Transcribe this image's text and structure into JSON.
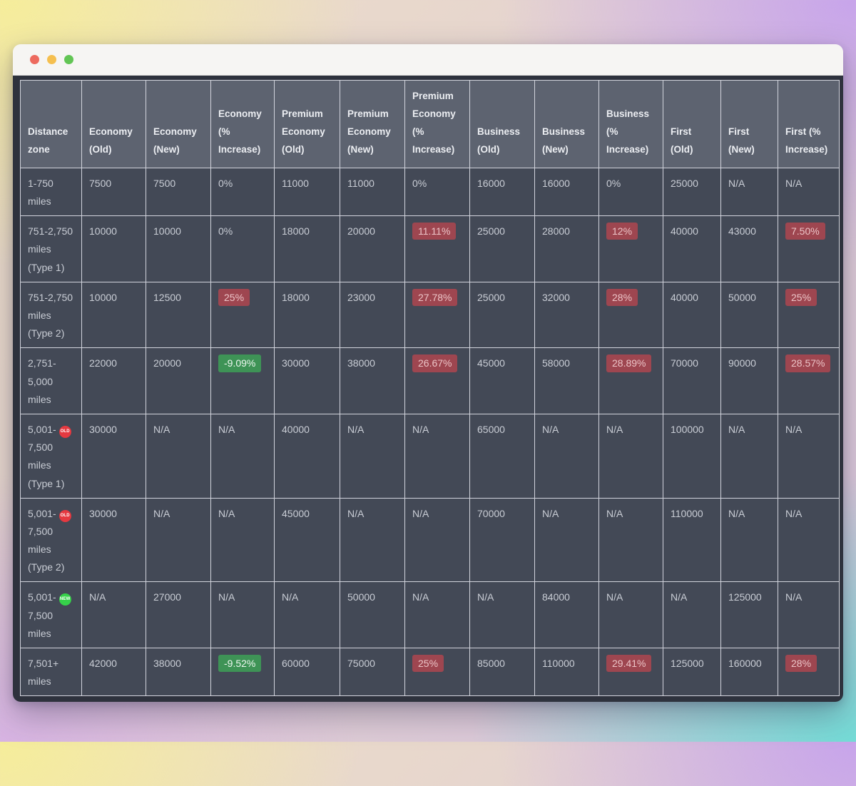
{
  "window": {
    "traffic_lights": [
      "#ed6a5e",
      "#f5bf4f",
      "#62c554"
    ]
  },
  "colors": {
    "red_highlight_bg": "#9e4650",
    "red_highlight_text": "#ecc4c7",
    "green_highlight_bg": "#3e9356",
    "green_highlight_text": "#edf7f0",
    "old_badge_bg": "#e53940",
    "new_badge_bg": "#36d14a"
  },
  "table": {
    "headers": [
      "Distance zone",
      "Economy (Old)",
      "Economy (New)",
      "Economy (% Increase)",
      "Premium Economy (Old)",
      "Premium Economy (New)",
      "Premium Economy (% Increase)",
      "Business (Old)",
      "Business (New)",
      "Business (% Increase)",
      "First (Old)",
      "First (New)",
      "First (% Increase)"
    ],
    "rows": [
      {
        "zone": "1-750 miles",
        "badge": null,
        "cells": [
          {
            "v": "7500"
          },
          {
            "v": "7500"
          },
          {
            "v": "0%"
          },
          {
            "v": "11000"
          },
          {
            "v": "11000"
          },
          {
            "v": "0%"
          },
          {
            "v": "16000"
          },
          {
            "v": "16000"
          },
          {
            "v": "0%"
          },
          {
            "v": "25000"
          },
          {
            "v": "N/A"
          },
          {
            "v": "N/A"
          }
        ]
      },
      {
        "zone": "751-2,750 miles (Type 1)",
        "badge": null,
        "cells": [
          {
            "v": "10000"
          },
          {
            "v": "10000"
          },
          {
            "v": "0%"
          },
          {
            "v": "18000"
          },
          {
            "v": "20000"
          },
          {
            "v": "11.11%",
            "h": "red"
          },
          {
            "v": "25000"
          },
          {
            "v": "28000"
          },
          {
            "v": "12%",
            "h": "red"
          },
          {
            "v": "40000"
          },
          {
            "v": "43000"
          },
          {
            "v": "7.50%",
            "h": "red"
          }
        ]
      },
      {
        "zone": "751-2,750 miles (Type 2)",
        "badge": null,
        "cells": [
          {
            "v": "10000"
          },
          {
            "v": "12500"
          },
          {
            "v": "25%",
            "h": "red"
          },
          {
            "v": "18000"
          },
          {
            "v": "23000"
          },
          {
            "v": "27.78%",
            "h": "red"
          },
          {
            "v": "25000"
          },
          {
            "v": "32000"
          },
          {
            "v": "28%",
            "h": "red"
          },
          {
            "v": "40000"
          },
          {
            "v": "50000"
          },
          {
            "v": "25%",
            "h": "red"
          }
        ]
      },
      {
        "zone": "2,751-5,000 miles",
        "badge": null,
        "cells": [
          {
            "v": "22000"
          },
          {
            "v": "20000"
          },
          {
            "v": "-9.09%",
            "h": "green"
          },
          {
            "v": "30000"
          },
          {
            "v": "38000"
          },
          {
            "v": "26.67%",
            "h": "red"
          },
          {
            "v": "45000"
          },
          {
            "v": "58000"
          },
          {
            "v": "28.89%",
            "h": "red"
          },
          {
            "v": "70000"
          },
          {
            "v": "90000"
          },
          {
            "v": "28.57%",
            "h": "red"
          }
        ]
      },
      {
        "zone": "5,001-7,500 miles (Type 1)",
        "badge": "OLD",
        "cells": [
          {
            "v": "30000"
          },
          {
            "v": "N/A"
          },
          {
            "v": "N/A"
          },
          {
            "v": "40000"
          },
          {
            "v": "N/A"
          },
          {
            "v": "N/A"
          },
          {
            "v": "65000"
          },
          {
            "v": "N/A"
          },
          {
            "v": "N/A"
          },
          {
            "v": "100000"
          },
          {
            "v": "N/A"
          },
          {
            "v": "N/A"
          }
        ]
      },
      {
        "zone": "5,001-7,500 miles (Type 2)",
        "badge": "OLD",
        "cells": [
          {
            "v": "30000"
          },
          {
            "v": "N/A"
          },
          {
            "v": "N/A"
          },
          {
            "v": "45000"
          },
          {
            "v": "N/A"
          },
          {
            "v": "N/A"
          },
          {
            "v": "70000"
          },
          {
            "v": "N/A"
          },
          {
            "v": "N/A"
          },
          {
            "v": "110000"
          },
          {
            "v": "N/A"
          },
          {
            "v": "N/A"
          }
        ]
      },
      {
        "zone": "5,001-7,500 miles",
        "badge": "NEW",
        "cells": [
          {
            "v": "N/A"
          },
          {
            "v": "27000"
          },
          {
            "v": "N/A"
          },
          {
            "v": "N/A"
          },
          {
            "v": "50000"
          },
          {
            "v": "N/A"
          },
          {
            "v": "N/A"
          },
          {
            "v": "84000"
          },
          {
            "v": "N/A"
          },
          {
            "v": "N/A"
          },
          {
            "v": "125000"
          },
          {
            "v": "N/A"
          }
        ]
      },
      {
        "zone": "7,501+ miles",
        "badge": null,
        "cells": [
          {
            "v": "42000"
          },
          {
            "v": "38000"
          },
          {
            "v": "-9.52%",
            "h": "green"
          },
          {
            "v": "60000"
          },
          {
            "v": "75000"
          },
          {
            "v": "25%",
            "h": "red"
          },
          {
            "v": "85000"
          },
          {
            "v": "110000"
          },
          {
            "v": "29.41%",
            "h": "red"
          },
          {
            "v": "125000"
          },
          {
            "v": "160000"
          },
          {
            "v": "28%",
            "h": "red"
          }
        ]
      }
    ]
  }
}
